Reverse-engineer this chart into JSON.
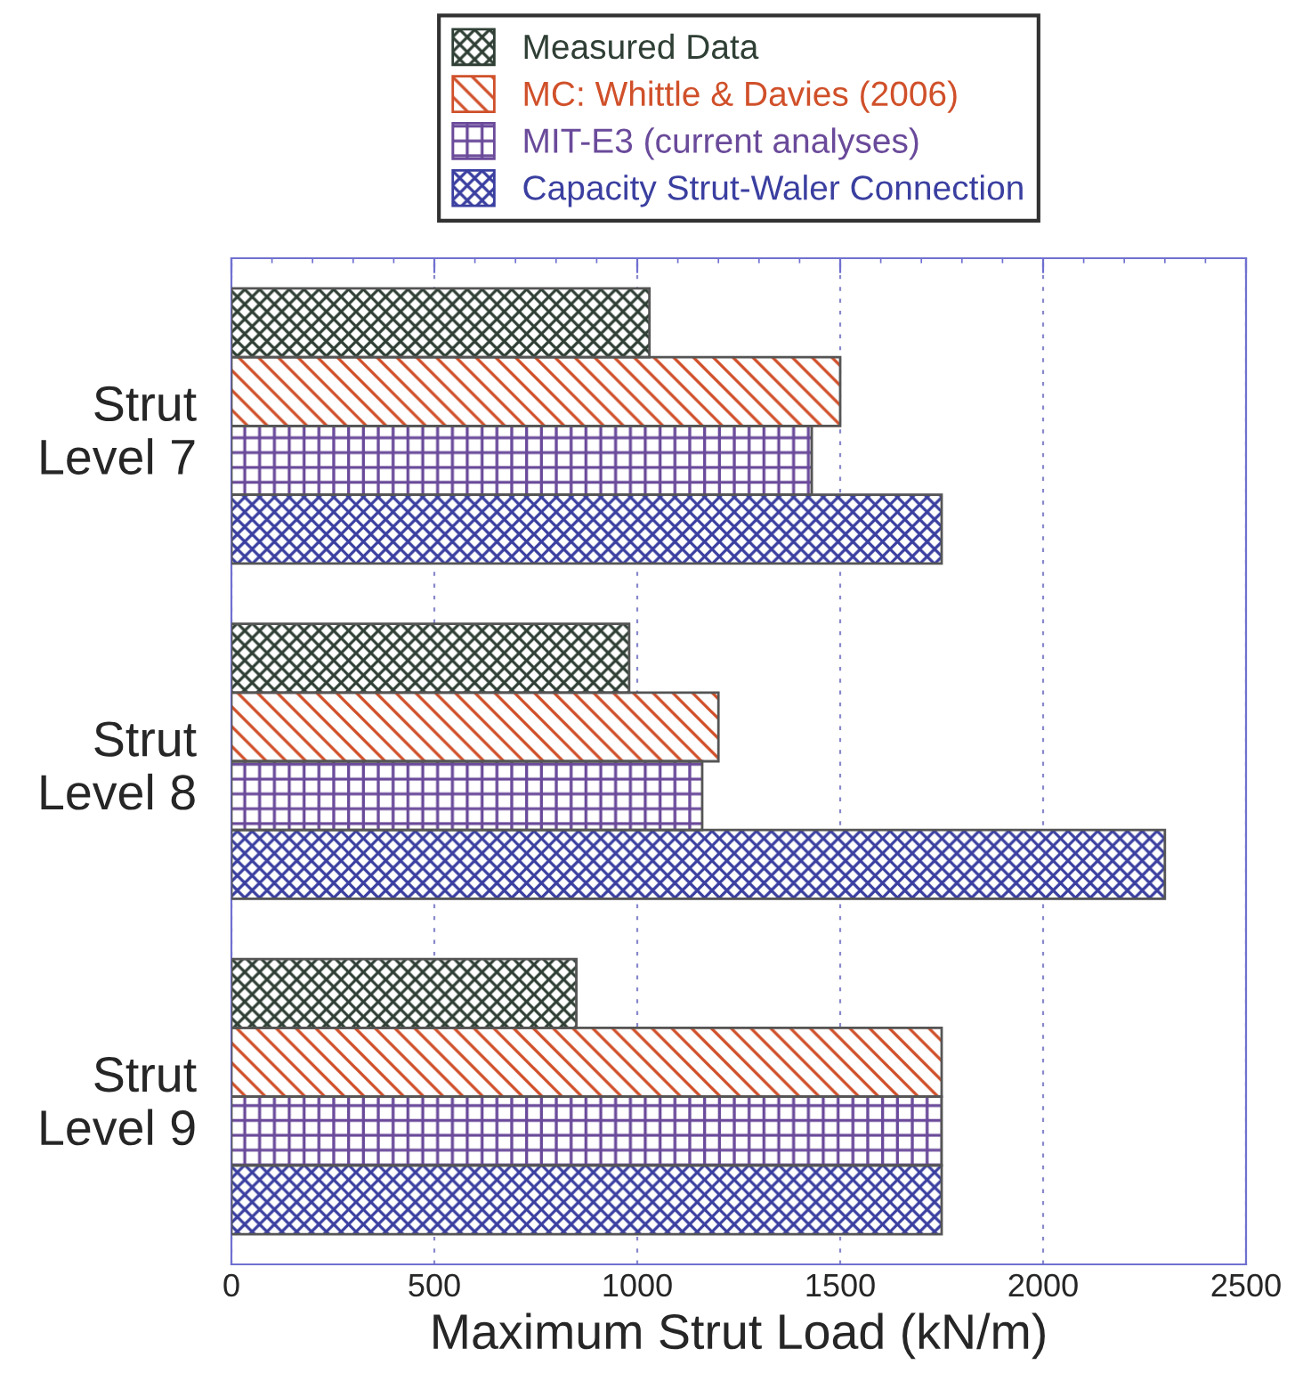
{
  "chart_data": {
    "type": "bar",
    "orientation": "horizontal",
    "xlabel": "Maximum Strut Load (kN/m)",
    "categories": [
      "Strut\nLevel 7",
      "Strut\nLevel 8",
      "Strut\nLevel 9"
    ],
    "series": [
      {
        "name": "Measured Data",
        "color": "#2f3f35",
        "values": [
          1030,
          980,
          850
        ]
      },
      {
        "name": "MC: Whittle & Davies (2006)",
        "color": "#d0502a",
        "values": [
          1500,
          1200,
          1750
        ]
      },
      {
        "name": "MIT-E3 (current analyses)",
        "color": "#6a4a9a",
        "values": [
          1430,
          1160,
          1750
        ]
      },
      {
        "name": "Capacity Strut-Waler Connection",
        "color": "#3a3fa0",
        "values": [
          1750,
          2300,
          1750
        ]
      }
    ],
    "xlim": [
      0,
      2500
    ],
    "xticks": [
      0,
      500,
      1000,
      1500,
      2000,
      2500
    ],
    "grid": "x",
    "legend": "top"
  }
}
